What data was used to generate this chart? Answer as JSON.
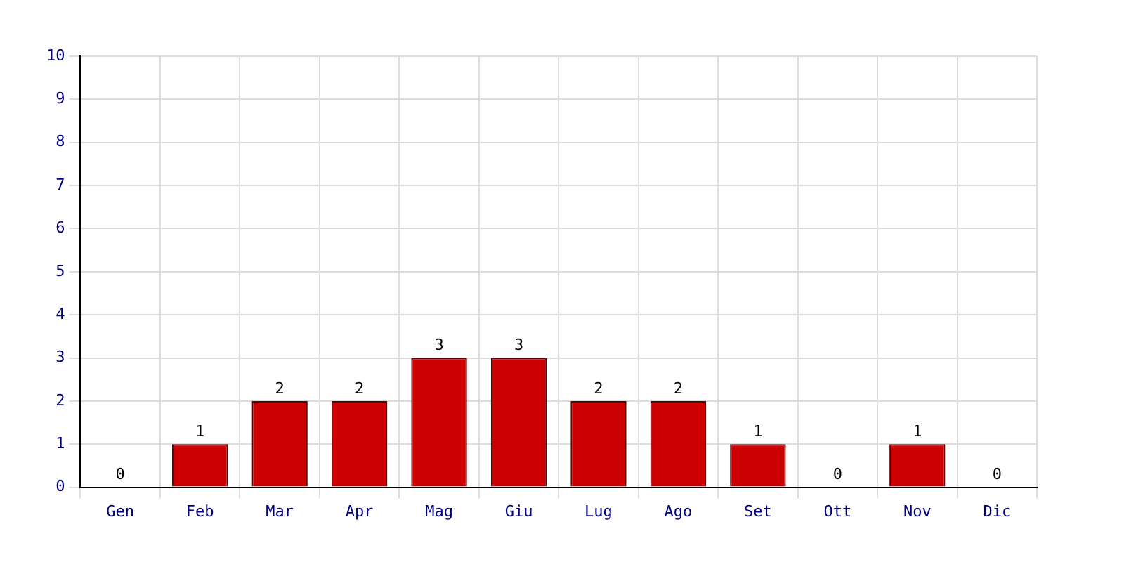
{
  "chart_data": {
    "type": "bar",
    "categories": [
      "Gen",
      "Feb",
      "Mar",
      "Apr",
      "Mag",
      "Giu",
      "Lug",
      "Ago",
      "Set",
      "Ott",
      "Nov",
      "Dic"
    ],
    "values": [
      0,
      1,
      2,
      2,
      3,
      3,
      2,
      2,
      1,
      0,
      1,
      0
    ],
    "color": "#cc0000",
    "ylim": [
      0,
      10
    ],
    "yticks": [
      0,
      1,
      2,
      3,
      4,
      5,
      6,
      7,
      8,
      9,
      10
    ],
    "grid": true,
    "data_labels": true
  }
}
